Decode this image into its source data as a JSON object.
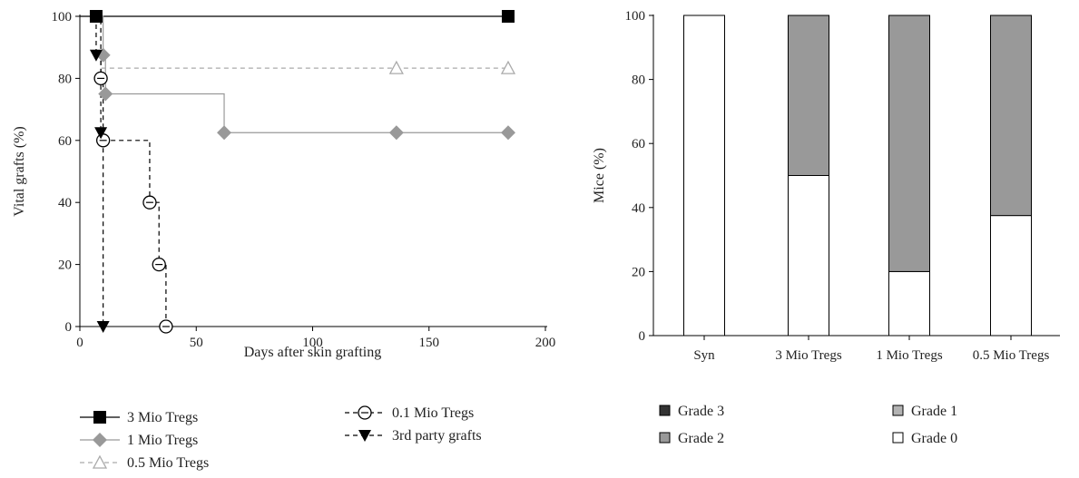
{
  "chart_data": [
    {
      "type": "line",
      "subtype": "kaplan-meier",
      "xlabel": "Days after skin grafting",
      "ylabel": "Vital grafts (%)",
      "xlim": [
        0,
        200
      ],
      "ylim": [
        0,
        100
      ],
      "xticks": [
        0,
        50,
        100,
        150,
        200
      ],
      "yticks": [
        0,
        20,
        40,
        60,
        80,
        100
      ],
      "legend_position": "bottom",
      "series": [
        {
          "name": "3 Mio Tregs",
          "color": "#000000",
          "marker": "square",
          "line_style": "solid",
          "step": [
            [
              0,
              100
            ],
            [
              184,
              100
            ]
          ],
          "points": [
            [
              7,
              100
            ],
            [
              184,
              100
            ]
          ]
        },
        {
          "name": "1 Mio Tregs",
          "color": "#999999",
          "marker": "diamond",
          "line_style": "solid",
          "step": [
            [
              7,
              100
            ],
            [
              10,
              87.5
            ],
            [
              11,
              75
            ],
            [
              62,
              62.5
            ],
            [
              184,
              62.5
            ]
          ],
          "points": [
            [
              10,
              87.5
            ],
            [
              11,
              75
            ],
            [
              62,
              62.5
            ],
            [
              136,
              62.5
            ],
            [
              184,
              62.5
            ]
          ]
        },
        {
          "name": "0.5 Mio Tregs",
          "color": "#aaaaaa",
          "marker": "triangle-open",
          "line_style": "dashed",
          "step": [
            [
              7,
              100
            ],
            [
              9,
              83.3
            ],
            [
              184,
              83.3
            ]
          ],
          "points": [
            [
              136,
              83.3
            ],
            [
              184,
              83.3
            ]
          ]
        },
        {
          "name": "0.1 Mio Tregs",
          "color": "#000000",
          "marker": "circle-open",
          "line_style": "dashed",
          "step": [
            [
              7,
              100
            ],
            [
              9,
              80
            ],
            [
              10,
              60
            ],
            [
              30,
              40
            ],
            [
              34,
              20
            ],
            [
              37,
              0
            ]
          ],
          "points": [
            [
              9,
              80
            ],
            [
              10,
              60
            ],
            [
              30,
              40
            ],
            [
              34,
              20
            ],
            [
              37,
              0
            ]
          ]
        },
        {
          "name": "3rd party grafts",
          "color": "#000000",
          "marker": "triangle-down",
          "line_style": "dashed",
          "step": [
            [
              7,
              100
            ],
            [
              7,
              87.5
            ],
            [
              9,
              62.5
            ],
            [
              10,
              0
            ]
          ],
          "points": [
            [
              7,
              87.5
            ],
            [
              9,
              62.5
            ],
            [
              10,
              0
            ]
          ]
        }
      ]
    },
    {
      "type": "bar",
      "subtype": "stacked",
      "ylabel": "Mice (%)",
      "ylim": [
        0,
        100
      ],
      "yticks": [
        0,
        20,
        40,
        60,
        80,
        100
      ],
      "categories": [
        "Syn",
        "3 Mio Tregs",
        "1 Mio Tregs",
        "0.5 Mio Tregs"
      ],
      "legend_position": "bottom",
      "series": [
        {
          "name": "Grade 0",
          "color": "#ffffff",
          "values": [
            100,
            50,
            20,
            37.5
          ]
        },
        {
          "name": "Grade 1",
          "color": "#b3b3b3",
          "values": [
            0,
            0,
            0,
            0
          ]
        },
        {
          "name": "Grade 2",
          "color": "#999999",
          "values": [
            0,
            50,
            80,
            62.5
          ]
        },
        {
          "name": "Grade 3",
          "color": "#333333",
          "values": [
            0,
            0,
            0,
            0
          ]
        }
      ],
      "legend_order": [
        "Grade 3",
        "Grade 1",
        "Grade 2",
        "Grade 0"
      ]
    }
  ]
}
